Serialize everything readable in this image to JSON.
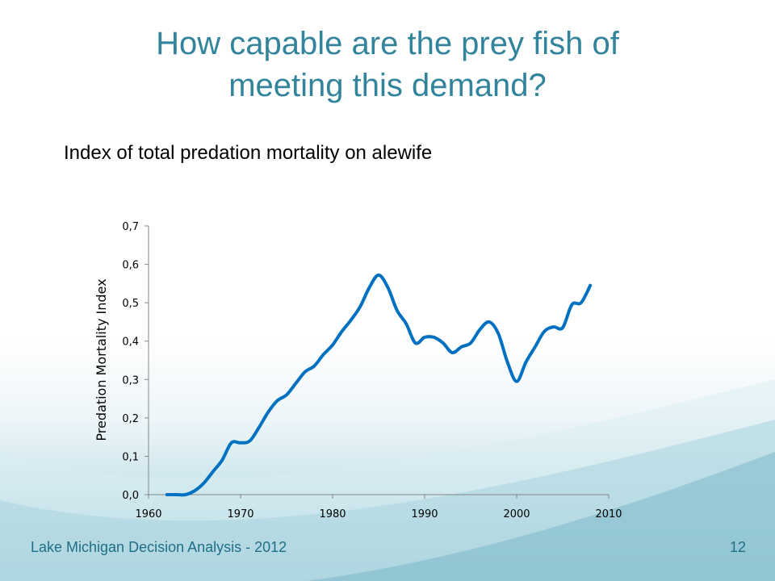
{
  "slide": {
    "title_line1": "How capable are the prey fish of",
    "title_line2": "meeting this demand?",
    "subtitle": "Index of total predation mortality on alewife",
    "footer_left": "Lake Michigan Decision Analysis - 2012",
    "page_number": "12"
  },
  "colors": {
    "title": "#31849b",
    "line": "#0070c0",
    "axis": "#868686",
    "footer": "#1f6f86"
  },
  "chart_data": {
    "type": "line",
    "title": "",
    "xlabel": "",
    "ylabel": "Predation Mortality Index",
    "xlim": [
      1960,
      2010
    ],
    "ylim": [
      0,
      0.7
    ],
    "grid": false,
    "legend": "none",
    "x_ticks": [
      "1960",
      "1970",
      "1980",
      "1990",
      "2000",
      "2010"
    ],
    "y_ticks": [
      "0,0",
      "0,1",
      "0,2",
      "0,3",
      "0,4",
      "0,5",
      "0,6",
      "0,7"
    ],
    "series": [
      {
        "x": [
          1962,
          1963,
          1964,
          1965,
          1966,
          1967,
          1968,
          1969,
          1970,
          1971,
          1972,
          1973,
          1974,
          1975,
          1976,
          1977,
          1978,
          1979,
          1980,
          1981,
          1982,
          1983,
          1984,
          1985,
          1986,
          1987,
          1988,
          1989,
          1990,
          1991,
          1992,
          1993,
          1994,
          1995,
          1996,
          1997,
          1998,
          1999,
          2000,
          2001,
          2002,
          2003,
          2004,
          2005,
          2006,
          2007,
          2008
        ],
        "values": [
          0.0,
          0.0,
          0.0,
          0.01,
          0.03,
          0.06,
          0.09,
          0.135,
          0.135,
          0.14,
          0.175,
          0.215,
          0.245,
          0.26,
          0.29,
          0.32,
          0.335,
          0.365,
          0.39,
          0.425,
          0.455,
          0.49,
          0.54,
          0.572,
          0.54,
          0.48,
          0.445,
          0.395,
          0.41,
          0.41,
          0.395,
          0.37,
          0.385,
          0.395,
          0.43,
          0.45,
          0.42,
          0.345,
          0.295,
          0.345,
          0.385,
          0.425,
          0.437,
          0.435,
          0.495,
          0.5,
          0.545
        ]
      }
    ]
  }
}
